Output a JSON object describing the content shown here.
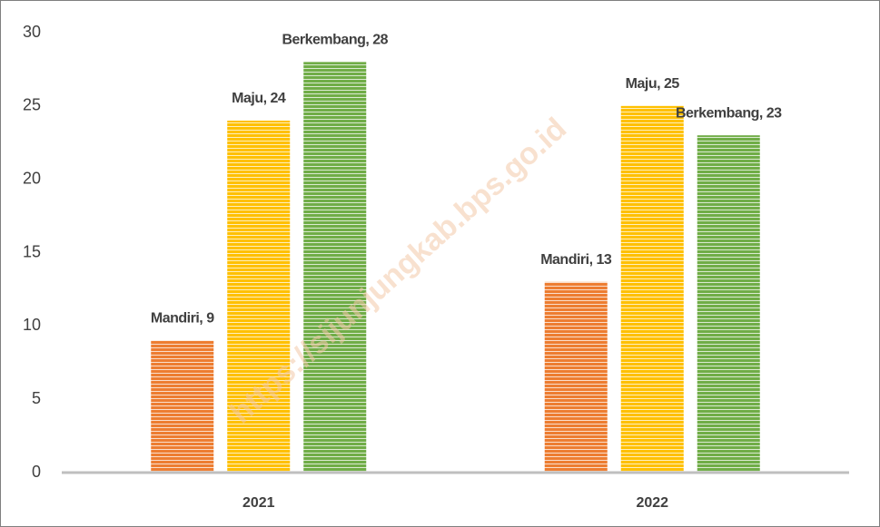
{
  "chart_data": {
    "type": "bar",
    "categories": [
      "2021",
      "2022"
    ],
    "series": [
      {
        "name": "Mandiri",
        "color": "#ed7d31",
        "values": [
          9,
          13
        ],
        "value_labels": [
          "Mandiri, 9",
          "Mandiri, 13"
        ]
      },
      {
        "name": "Maju",
        "color": "#ffc000",
        "values": [
          24,
          25
        ],
        "value_labels": [
          "Maju, 24",
          "Maju, 25"
        ]
      },
      {
        "name": "Berkembang",
        "color": "#70ad47",
        "values": [
          28,
          23
        ],
        "value_labels": [
          "Berkembang, 28",
          "Berkembang, 23"
        ]
      }
    ],
    "ylim": [
      0,
      30
    ],
    "yticks": [
      0,
      5,
      10,
      15,
      20,
      25,
      30
    ],
    "grid": false,
    "watermark": "https://sijunjungkab.bps.go.id"
  }
}
